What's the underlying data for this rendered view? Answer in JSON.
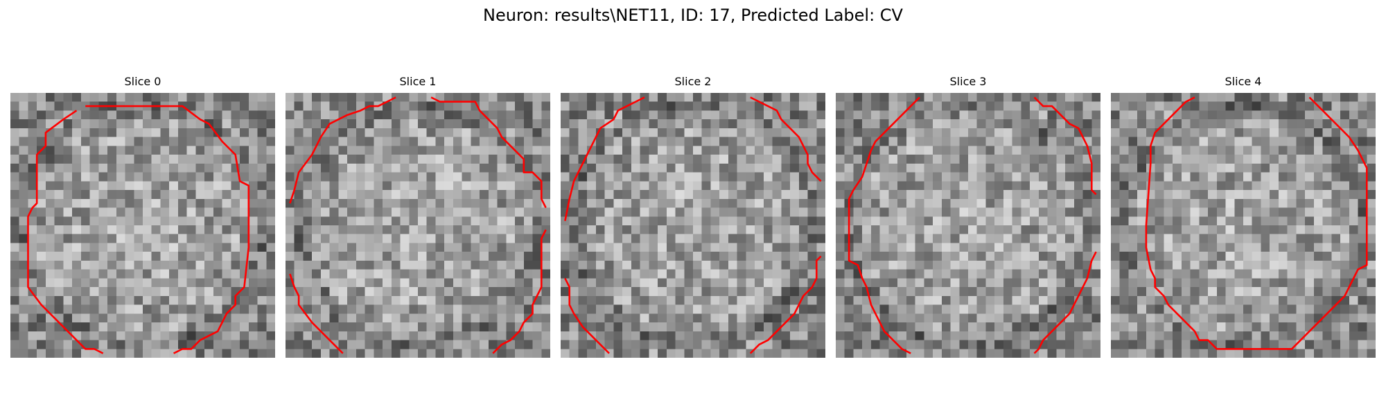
{
  "figure": {
    "title": "Neuron: results\\NET11, ID: 17, Predicted Label: CV",
    "grid_size": 30,
    "colormap": "gray",
    "contour_color": "#ff0000"
  },
  "slices": [
    {
      "title": "Slice 0",
      "contours": [
        [
          [
            8.5,
            1.5
          ],
          [
            9.5,
            1.5
          ],
          [
            10.5,
            1.5
          ],
          [
            11.5,
            1.5
          ],
          [
            12.5,
            1.5
          ],
          [
            13.5,
            1.5
          ],
          [
            14.5,
            1.5
          ],
          [
            15.5,
            1.5
          ],
          [
            16.5,
            1.5
          ],
          [
            17.5,
            1.5
          ],
          [
            19.5,
            1.5
          ],
          [
            21.5,
            3
          ],
          [
            22.5,
            3.5
          ],
          [
            24,
            5.5
          ],
          [
            25.5,
            7
          ],
          [
            26,
            10
          ],
          [
            27,
            10.5
          ],
          [
            27,
            17.5
          ],
          [
            26.5,
            22
          ],
          [
            25.5,
            23
          ],
          [
            25.5,
            24
          ],
          [
            24.5,
            25
          ],
          [
            23.5,
            27
          ],
          [
            21.5,
            28
          ],
          [
            20.5,
            29
          ],
          [
            19.5,
            29
          ],
          [
            18.5,
            29.5
          ]
        ],
        [
          [
            10.5,
            29.5
          ],
          [
            9.5,
            29
          ],
          [
            8.5,
            29
          ],
          [
            7.5,
            28
          ],
          [
            6.5,
            27
          ],
          [
            5.5,
            26
          ],
          [
            4.5,
            25
          ],
          [
            3.5,
            24
          ],
          [
            2,
            22
          ],
          [
            2,
            14
          ],
          [
            2.5,
            13
          ],
          [
            3,
            12.5
          ],
          [
            3,
            7
          ],
          [
            4,
            6
          ],
          [
            4,
            4.5
          ],
          [
            6,
            3
          ],
          [
            7.5,
            2
          ]
        ]
      ]
    },
    {
      "title": "Slice 1",
      "contours": [
        [
          [
            0.5,
            12.5
          ],
          [
            1,
            11
          ],
          [
            1.5,
            9
          ],
          [
            3,
            7
          ],
          [
            3.5,
            6
          ],
          [
            4,
            5
          ],
          [
            5,
            3.5
          ],
          [
            7,
            2.5
          ],
          [
            8.5,
            2
          ],
          [
            9.5,
            1.5
          ],
          [
            10.5,
            1.5
          ],
          [
            11.5,
            1
          ],
          [
            12.5,
            0.5
          ]
        ],
        [
          [
            16.5,
            0.5
          ],
          [
            17.5,
            1
          ],
          [
            21.5,
            1
          ],
          [
            22,
            2
          ],
          [
            22.5,
            2.5
          ],
          [
            24,
            4
          ],
          [
            24.5,
            5
          ],
          [
            25.5,
            6
          ],
          [
            27,
            7.5
          ],
          [
            27,
            9
          ],
          [
            28,
            9
          ],
          [
            29,
            10
          ],
          [
            29,
            12
          ],
          [
            29.5,
            13
          ]
        ],
        [
          [
            29.5,
            15.5
          ],
          [
            29,
            16.5
          ],
          [
            29,
            22
          ],
          [
            28.5,
            23
          ],
          [
            28,
            24
          ],
          [
            28,
            25
          ],
          [
            27,
            26
          ],
          [
            26.5,
            27
          ],
          [
            26,
            27.5
          ],
          [
            25.5,
            28
          ],
          [
            24.5,
            28.5
          ],
          [
            23.5,
            29.5
          ]
        ],
        [
          [
            6.5,
            29.5
          ],
          [
            5.5,
            28.5
          ],
          [
            4.5,
            27.5
          ],
          [
            3,
            26
          ],
          [
            1.5,
            24
          ],
          [
            1.5,
            23
          ],
          [
            1,
            22
          ],
          [
            0.5,
            20.5
          ]
        ]
      ]
    },
    {
      "title": "Slice 2",
      "contours": [
        [
          [
            0.5,
            14.5
          ],
          [
            1,
            12
          ],
          [
            1.5,
            10
          ],
          [
            2,
            9
          ],
          [
            2.5,
            8
          ],
          [
            3,
            7
          ],
          [
            3.5,
            6
          ],
          [
            4,
            5
          ],
          [
            4.5,
            4
          ],
          [
            6,
            3
          ],
          [
            6.5,
            2
          ],
          [
            7.5,
            1.5
          ],
          [
            8.5,
            1
          ],
          [
            9.5,
            0.5
          ]
        ],
        [
          [
            21.5,
            0.5
          ],
          [
            22.5,
            1
          ],
          [
            23.5,
            1.5
          ],
          [
            24.5,
            2
          ],
          [
            25,
            3
          ],
          [
            26,
            4
          ],
          [
            27,
            5
          ],
          [
            27.5,
            6
          ],
          [
            28,
            7
          ],
          [
            28,
            8
          ],
          [
            28.5,
            9
          ],
          [
            29.5,
            10
          ]
        ],
        [
          [
            29.5,
            18.5
          ],
          [
            29,
            19
          ],
          [
            29,
            21
          ],
          [
            28.5,
            22
          ],
          [
            27.5,
            23
          ],
          [
            27,
            24
          ],
          [
            26.5,
            25
          ],
          [
            25.5,
            26
          ],
          [
            24.5,
            27
          ],
          [
            23.5,
            28
          ],
          [
            22.5,
            28.5
          ],
          [
            21.5,
            29.5
          ]
        ],
        [
          [
            5.5,
            29.5
          ],
          [
            4.5,
            28.5
          ],
          [
            3.5,
            27.5
          ],
          [
            2.5,
            26.5
          ],
          [
            1.5,
            25
          ],
          [
            1,
            24
          ],
          [
            1,
            22
          ],
          [
            0.5,
            21
          ]
        ]
      ]
    },
    {
      "title": "Slice 3",
      "contours": [
        [
          [
            9.5,
            0.5
          ],
          [
            8.5,
            1.5
          ],
          [
            7.5,
            2.5
          ],
          [
            6.5,
            3.5
          ],
          [
            5.5,
            4.5
          ],
          [
            4.5,
            5.5
          ],
          [
            4,
            6.5
          ],
          [
            3.5,
            8
          ],
          [
            3,
            9.5
          ],
          [
            2,
            11
          ],
          [
            1.5,
            12
          ],
          [
            1.5,
            19
          ],
          [
            2.5,
            19.5
          ],
          [
            3,
            21
          ],
          [
            3.5,
            22
          ],
          [
            4,
            24
          ],
          [
            4.5,
            25
          ],
          [
            5,
            26
          ],
          [
            5.5,
            27
          ],
          [
            6.5,
            28
          ],
          [
            7.5,
            29
          ],
          [
            8.5,
            29.5
          ]
        ],
        [
          [
            22.5,
            0.5
          ],
          [
            23.5,
            1.5
          ],
          [
            24.5,
            1.5
          ],
          [
            25.5,
            2.5
          ],
          [
            26.5,
            3.5
          ],
          [
            27.5,
            4
          ],
          [
            28.5,
            6
          ],
          [
            29,
            8
          ],
          [
            29,
            11
          ],
          [
            29.5,
            11.5
          ]
        ],
        [
          [
            29.5,
            18
          ],
          [
            29,
            19
          ],
          [
            28.5,
            21
          ],
          [
            27.5,
            23
          ],
          [
            27,
            24
          ],
          [
            26.5,
            25
          ],
          [
            25.5,
            26
          ],
          [
            24.5,
            27
          ],
          [
            23.5,
            28
          ],
          [
            23,
            29
          ],
          [
            22.5,
            29.5
          ]
        ]
      ]
    },
    {
      "title": "Slice 4",
      "contours": [
        [
          [
            9.5,
            0.5
          ],
          [
            8.5,
            1
          ],
          [
            7.5,
            2
          ],
          [
            6.5,
            3
          ],
          [
            5,
            4.5
          ],
          [
            4.5,
            6
          ],
          [
            4.5,
            8
          ],
          [
            4,
            15
          ],
          [
            4,
            17.5
          ],
          [
            4.5,
            20
          ],
          [
            5,
            21
          ],
          [
            5,
            22
          ],
          [
            6,
            23
          ],
          [
            6.5,
            24
          ],
          [
            7.5,
            25
          ],
          [
            8.5,
            26
          ],
          [
            9.5,
            27
          ],
          [
            10,
            28
          ],
          [
            11,
            28
          ],
          [
            12,
            29
          ],
          [
            16,
            29
          ],
          [
            20.5,
            29
          ],
          [
            21.5,
            28
          ],
          [
            22.5,
            27
          ],
          [
            23.5,
            26
          ],
          [
            24.5,
            25
          ],
          [
            25.5,
            24
          ],
          [
            26.5,
            23
          ],
          [
            27,
            22
          ],
          [
            28,
            20
          ],
          [
            29,
            19.5
          ],
          [
            29,
            8.5
          ],
          [
            28,
            6.5
          ],
          [
            27,
            5
          ],
          [
            26,
            4
          ],
          [
            25,
            3
          ],
          [
            24,
            2
          ],
          [
            22.5,
            0.5
          ]
        ]
      ]
    }
  ]
}
